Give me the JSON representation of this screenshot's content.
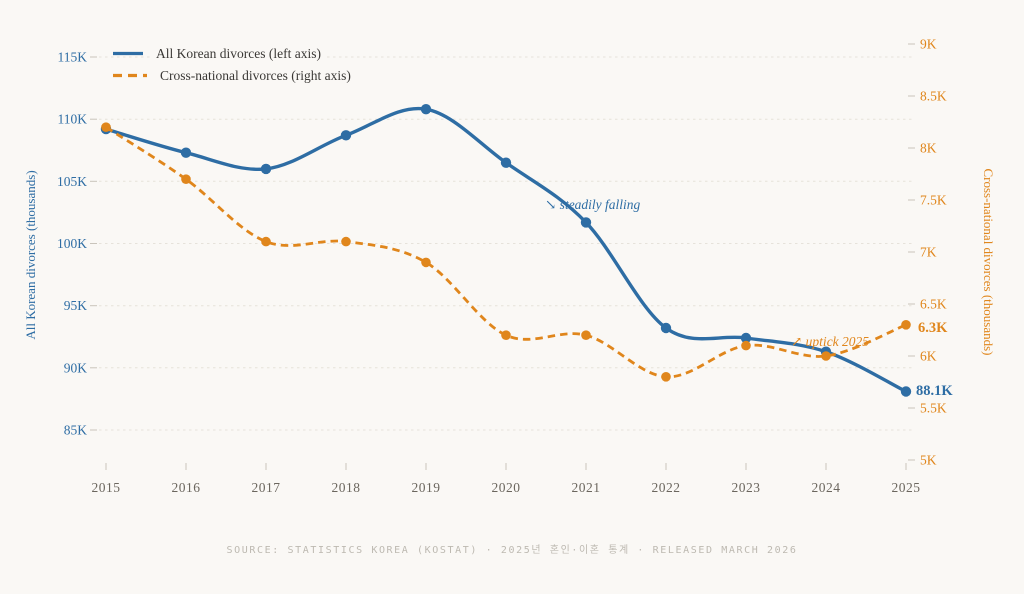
{
  "colors": {
    "blue": "#2e6da4",
    "orange": "#e0861c",
    "grid": "#e6e2da",
    "tick": "#c9c4bb",
    "x_label": "#6b665e",
    "legend_text": "#3a3835",
    "source_text": "#bdb9b1",
    "background": "#faf8f5"
  },
  "source": {
    "text": "SOURCE: STATISTICS KOREA (KOSTAT) · 2025년 혼인·이혼 통계 · RELEASED MARCH 2026"
  },
  "chart_data": {
    "type": "line",
    "x": [
      2015,
      2016,
      2017,
      2018,
      2019,
      2020,
      2021,
      2022,
      2023,
      2024,
      2025
    ],
    "x_tick_labels": [
      "2015",
      "2016",
      "2017",
      "2018",
      "2019",
      "2020",
      "2021",
      "2022",
      "2023",
      "2024",
      "2025"
    ],
    "series": [
      {
        "name": "All Korean divorces (left axis)",
        "axis": "left",
        "color": "#2e6da4",
        "style": "solid",
        "values": [
          109.2,
          107.3,
          106.0,
          108.7,
          110.8,
          106.5,
          101.7,
          93.2,
          92.4,
          91.3,
          88.1
        ]
      },
      {
        "name": "Cross-national divorces (right axis)",
        "axis": "right",
        "color": "#e0861c",
        "style": "dashed",
        "values": [
          8.2,
          7.7,
          7.1,
          7.1,
          6.9,
          6.2,
          6.2,
          5.8,
          6.1,
          6.0,
          6.3
        ]
      }
    ],
    "left_axis": {
      "label": "All Korean divorces (thousands)",
      "unit": "thousands",
      "ticks": [
        115,
        110,
        105,
        100,
        95,
        90,
        85
      ],
      "tick_labels": [
        "115K",
        "110K",
        "105K",
        "100K",
        "95K",
        "90K",
        "85K"
      ],
      "ylim": [
        85,
        115
      ]
    },
    "right_axis": {
      "label": "Cross-national divorces (thousands)",
      "unit": "thousands",
      "ticks": [
        9,
        8.5,
        8,
        7.5,
        7,
        6.5,
        6,
        5.5,
        5
      ],
      "tick_labels": [
        "9K",
        "8.5K",
        "8K",
        "7.5K",
        "7K",
        "6.5K",
        "6K",
        "5.5K",
        "5K"
      ],
      "ylim": [
        5,
        9
      ]
    },
    "grid": "horizontal dashed lines at left-axis ticks",
    "legend_position": "top-left",
    "annotations": [
      {
        "text": "↘ steadily falling",
        "near_x": 2020.5,
        "series": "All Korean divorces",
        "color": "#2e6da4"
      },
      {
        "text": "↗ uptick 2025",
        "near_x": 2023.6,
        "series": "Cross-national divorces",
        "color": "#e0861c"
      }
    ],
    "end_labels": [
      {
        "series": "All Korean divorces",
        "x": 2025,
        "value": 88.1,
        "text": "88.1K"
      },
      {
        "series": "Cross-national divorces",
        "x": 2025,
        "value": 6.3,
        "text": "6.3K"
      }
    ]
  }
}
